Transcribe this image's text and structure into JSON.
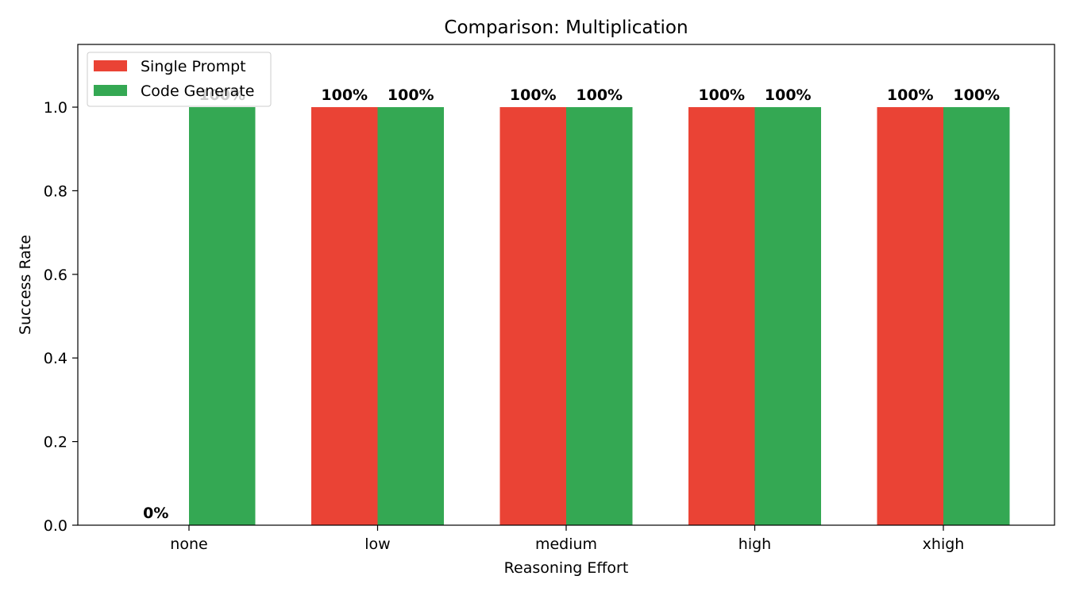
{
  "chart_data": {
    "type": "bar",
    "title": "Comparison: Multiplication",
    "xlabel": "Reasoning Effort",
    "ylabel": "Success Rate",
    "categories": [
      "none",
      "low",
      "medium",
      "high",
      "xhigh"
    ],
    "series": [
      {
        "name": "Single Prompt",
        "color": "#ea4335",
        "values": [
          0.0,
          1.0,
          1.0,
          1.0,
          1.0
        ],
        "labels": [
          "0%",
          "100%",
          "100%",
          "100%",
          "100%"
        ]
      },
      {
        "name": "Code Generate",
        "color": "#34a853",
        "values": [
          1.0,
          1.0,
          1.0,
          1.0,
          1.0
        ],
        "labels": [
          "100%",
          "100%",
          "100%",
          "100%",
          "100%"
        ]
      }
    ],
    "ylim": [
      0,
      1.15
    ],
    "yticks": [
      0.0,
      0.2,
      0.4,
      0.6,
      0.8,
      1.0
    ],
    "ytick_labels": [
      "0.0",
      "0.2",
      "0.4",
      "0.6",
      "0.8",
      "1.0"
    ],
    "legend_position": "top-left",
    "grid": false
  }
}
